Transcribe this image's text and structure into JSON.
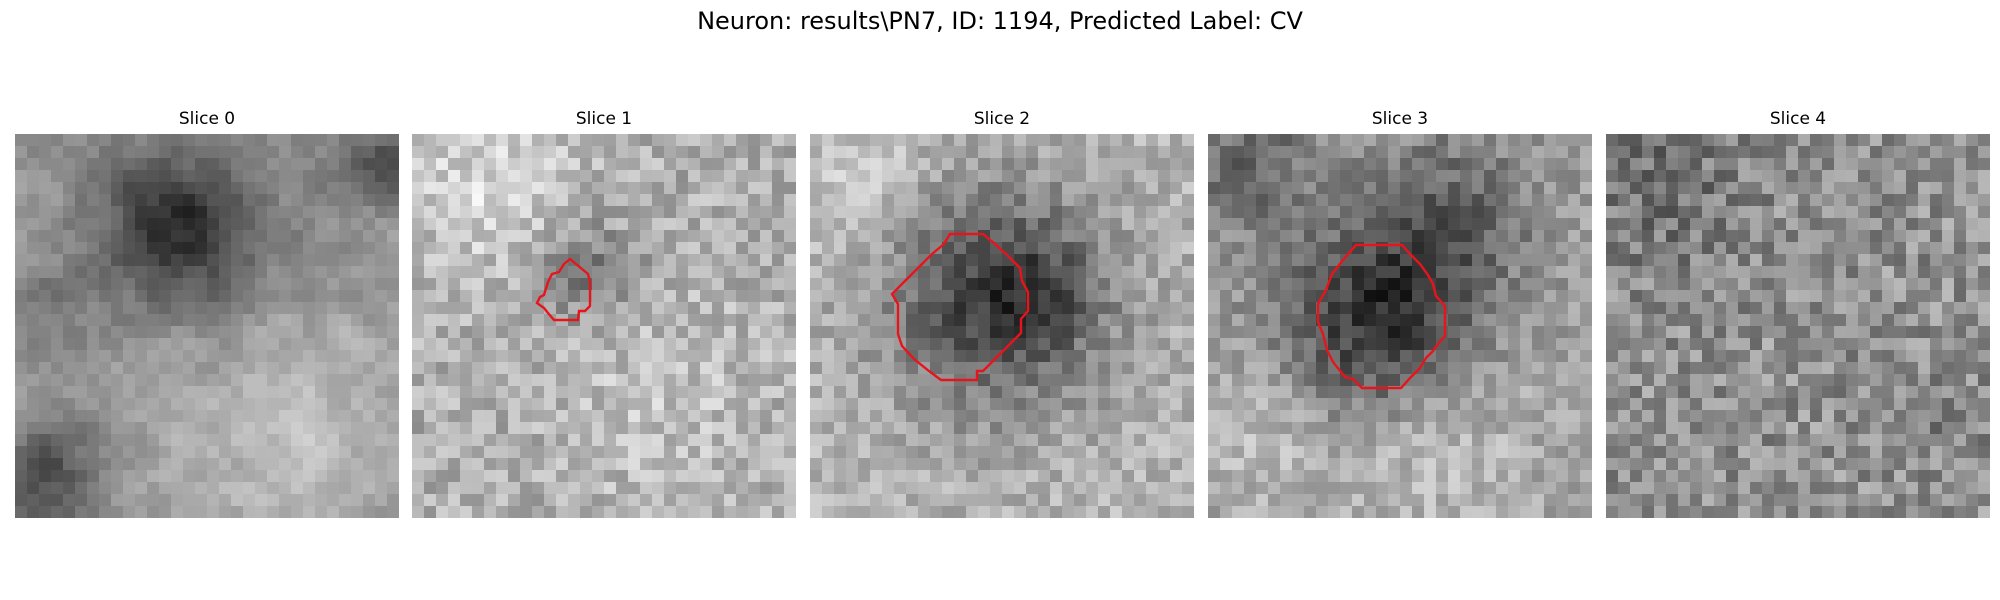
{
  "figure": {
    "title": "Neuron: results\\PN7, ID: 1194, Predicted Label: CV",
    "contour_color": "#e8141c"
  },
  "panels": [
    {
      "title": "Slice 0",
      "has_contour": false
    },
    {
      "title": "Slice 1",
      "has_contour": true
    },
    {
      "title": "Slice 2",
      "has_contour": true
    },
    {
      "title": "Slice 3",
      "has_contour": true
    },
    {
      "title": "Slice 4",
      "has_contour": false
    }
  ]
}
